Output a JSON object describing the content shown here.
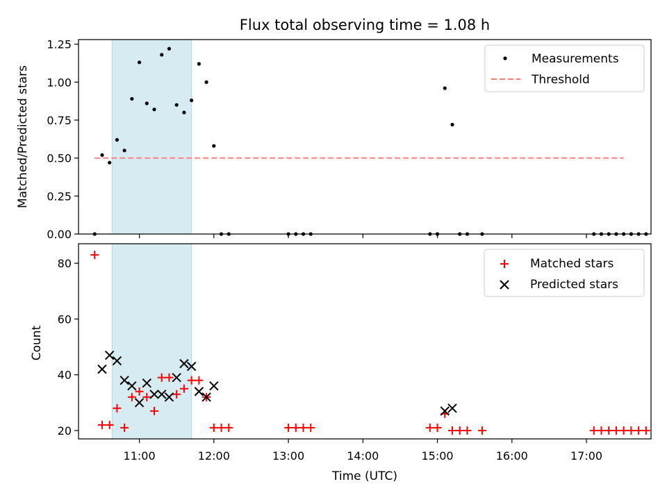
{
  "title": "Flux total observing time = 1.08 h",
  "colors": {
    "measurement": "#000000",
    "threshold": "#ff7f7f",
    "matched": "#ff0000",
    "predicted": "#000000",
    "span": "#add8e6"
  },
  "chart_data": [
    {
      "type": "scatter",
      "ylabel": "Matched/Predicted stars",
      "xlim": [
        "10:11",
        "17:52"
      ],
      "ylim": [
        0,
        1.28
      ],
      "yticks": [
        "0.00",
        "0.25",
        "0.50",
        "0.75",
        "1.00",
        "1.25"
      ],
      "shaded_interval": [
        "10:38",
        "11:42"
      ],
      "legend": {
        "position": "top-right",
        "entries": [
          "Measurements",
          "Threshold"
        ]
      },
      "threshold": {
        "value": 0.5,
        "x_range": [
          "10:24",
          "17:30"
        ]
      },
      "series": [
        {
          "name": "Measurements",
          "marker": "dot",
          "points": [
            [
              "10:24",
              0.0
            ],
            [
              "10:30",
              0.52
            ],
            [
              "10:36",
              0.47
            ],
            [
              "10:42",
              0.62
            ],
            [
              "10:48",
              0.55
            ],
            [
              "10:54",
              0.89
            ],
            [
              "11:00",
              1.13
            ],
            [
              "11:06",
              0.86
            ],
            [
              "11:12",
              0.82
            ],
            [
              "11:18",
              1.18
            ],
            [
              "11:24",
              1.22
            ],
            [
              "11:30",
              0.85
            ],
            [
              "11:36",
              0.8
            ],
            [
              "11:42",
              0.88
            ],
            [
              "11:48",
              1.12
            ],
            [
              "11:54",
              1.0
            ],
            [
              "12:00",
              0.58
            ],
            [
              "12:06",
              0.0
            ],
            [
              "12:12",
              0.0
            ],
            [
              "13:00",
              0.0
            ],
            [
              "13:06",
              0.0
            ],
            [
              "13:12",
              0.0
            ],
            [
              "13:18",
              0.0
            ],
            [
              "14:54",
              0.0
            ],
            [
              "15:00",
              0.0
            ],
            [
              "15:06",
              0.96
            ],
            [
              "15:12",
              0.72
            ],
            [
              "15:18",
              0.0
            ],
            [
              "15:24",
              0.0
            ],
            [
              "15:36",
              0.0
            ],
            [
              "17:06",
              0.0
            ],
            [
              "17:12",
              0.0
            ],
            [
              "17:18",
              0.0
            ],
            [
              "17:24",
              0.0
            ],
            [
              "17:30",
              0.0
            ],
            [
              "17:36",
              0.0
            ],
            [
              "17:42",
              0.0
            ],
            [
              "17:48",
              0.0
            ]
          ]
        }
      ]
    },
    {
      "type": "scatter",
      "xlabel": "Time (UTC)",
      "ylabel": "Count",
      "xlim": [
        "10:11",
        "17:52"
      ],
      "xticks": [
        "11:00",
        "12:00",
        "13:00",
        "14:00",
        "15:00",
        "16:00",
        "17:00"
      ],
      "ylim": [
        17,
        87
      ],
      "yticks": [
        "20",
        "40",
        "60",
        "80"
      ],
      "shaded_interval": [
        "10:38",
        "11:42"
      ],
      "legend": {
        "position": "top-right",
        "entries": [
          "Matched stars",
          "Predicted stars"
        ]
      },
      "series": [
        {
          "name": "Matched stars",
          "marker": "plus",
          "points": [
            [
              "10:24",
              83
            ],
            [
              "10:30",
              22
            ],
            [
              "10:36",
              22
            ],
            [
              "10:42",
              28
            ],
            [
              "10:48",
              21
            ],
            [
              "10:54",
              32
            ],
            [
              "11:00",
              34
            ],
            [
              "11:06",
              32
            ],
            [
              "11:12",
              27
            ],
            [
              "11:18",
              39
            ],
            [
              "11:24",
              39
            ],
            [
              "11:30",
              33
            ],
            [
              "11:36",
              35
            ],
            [
              "11:42",
              38
            ],
            [
              "11:48",
              38
            ],
            [
              "11:54",
              32
            ],
            [
              "12:00",
              21
            ],
            [
              "12:06",
              21
            ],
            [
              "12:12",
              21
            ],
            [
              "13:00",
              21
            ],
            [
              "13:06",
              21
            ],
            [
              "13:12",
              21
            ],
            [
              "13:18",
              21
            ],
            [
              "14:54",
              21
            ],
            [
              "15:00",
              21
            ],
            [
              "15:06",
              26
            ],
            [
              "15:12",
              20
            ],
            [
              "15:18",
              20
            ],
            [
              "15:24",
              20
            ],
            [
              "15:36",
              20
            ],
            [
              "17:06",
              20
            ],
            [
              "17:12",
              20
            ],
            [
              "17:18",
              20
            ],
            [
              "17:24",
              20
            ],
            [
              "17:30",
              20
            ],
            [
              "17:36",
              20
            ],
            [
              "17:42",
              20
            ],
            [
              "17:48",
              20
            ]
          ]
        },
        {
          "name": "Predicted stars",
          "marker": "x",
          "points": [
            [
              "10:30",
              42
            ],
            [
              "10:36",
              47
            ],
            [
              "10:42",
              45
            ],
            [
              "10:48",
              38
            ],
            [
              "10:54",
              36
            ],
            [
              "11:00",
              30
            ],
            [
              "11:06",
              37
            ],
            [
              "11:12",
              33
            ],
            [
              "11:18",
              33
            ],
            [
              "11:24",
              32
            ],
            [
              "11:30",
              39
            ],
            [
              "11:36",
              44
            ],
            [
              "11:42",
              43
            ],
            [
              "11:48",
              34
            ],
            [
              "11:54",
              32
            ],
            [
              "12:00",
              36
            ],
            [
              "15:06",
              27
            ],
            [
              "15:12",
              28
            ]
          ]
        }
      ]
    }
  ]
}
